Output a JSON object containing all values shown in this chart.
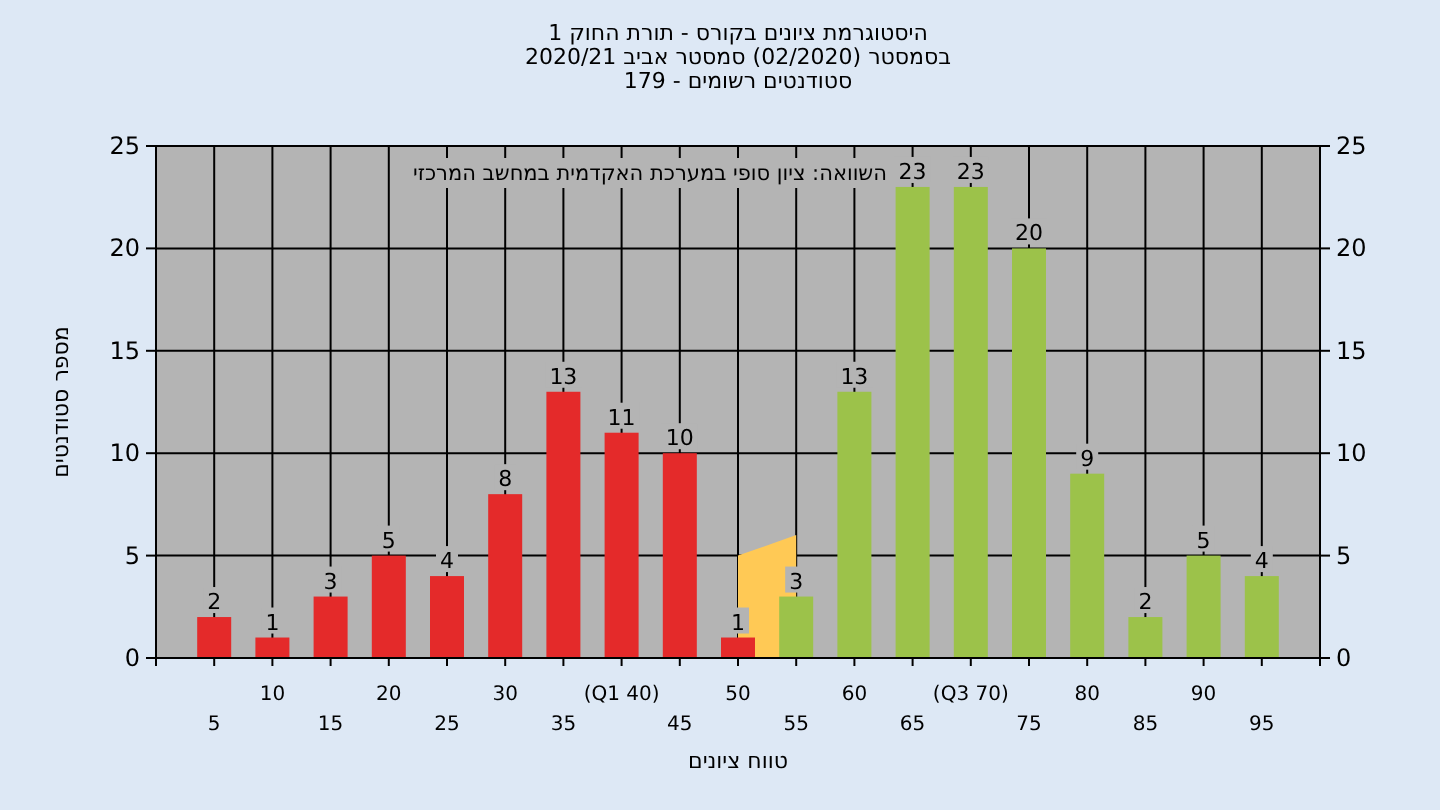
{
  "chart_data": {
    "type": "bar",
    "title": "היסטוגרמת ציונים בקורס - תורת החוק 1",
    "subtitle": "בסמסטר (02/2020) סמסטר אביב 2020/21",
    "xlabel": "טווח ציונים",
    "ylabel": "מספר סטודנטים",
    "annotations": [
      "סטודנטים רשומים - 179",
      "השוואה: ציון סופי במערכת האקדמית במחשב המרכזי"
    ],
    "categories": [
      "5",
      "10",
      "15",
      "20",
      "25",
      "30",
      "35",
      "(Q1 40)",
      "45",
      "50",
      "55",
      "60",
      "65",
      "(Q3 70)",
      "75",
      "80",
      "85",
      "90",
      "95"
    ],
    "series": [
      {
        "type": "area",
        "color": "#ffc955",
        "values": [
          null,
          null,
          null,
          null,
          null,
          null,
          null,
          null,
          null,
          5,
          6,
          null,
          null,
          null,
          null,
          null,
          null,
          null,
          null
        ]
      },
      {
        "colors": [
          "#e42a2a",
          "#e42a2a",
          "#e42a2a",
          "#e42a2a",
          "#e42a2a",
          "#e42a2a",
          "#e42a2a",
          "#e42a2a",
          "#e42a2a",
          "#e42a2a",
          "#9cc24a",
          "#9cc24a",
          "#9cc24a",
          "#9cc24a",
          "#9cc24a",
          "#9cc24a",
          "#9cc24a",
          "#9cc24a",
          "#9cc24a"
        ],
        "values": [
          2,
          1,
          3,
          5,
          4,
          8,
          13,
          11,
          10,
          1,
          3,
          13,
          23,
          23,
          20,
          9,
          2,
          5,
          4
        ],
        "value_labels": [
          "2",
          "1",
          "3",
          "5",
          "4",
          "8",
          "13",
          "11",
          "10",
          "1",
          "3",
          "13",
          "23",
          "23",
          "20",
          "9",
          "2",
          "5",
          "4"
        ]
      }
    ],
    "ylim": [
      0,
      25
    ],
    "yticks": [
      0,
      5,
      10,
      15,
      20,
      25
    ],
    "y2lim": [
      0,
      25
    ],
    "y2ticks": [
      0,
      5,
      10,
      15,
      20,
      25
    ],
    "grid": true
  }
}
